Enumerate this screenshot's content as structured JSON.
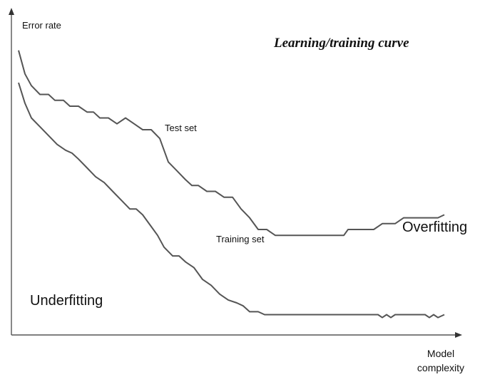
{
  "chart_data": {
    "type": "line",
    "title": "Learning/training curve",
    "ylabel": "Error rate",
    "xlabel_lines": [
      "Model",
      "complexity"
    ],
    "axis_ticks": false,
    "grid": false,
    "xlim": [
      0,
      100
    ],
    "ylim": [
      0,
      100
    ],
    "annotations": [
      "Underfitting",
      "Overfitting"
    ],
    "series": [
      {
        "name": "Test set",
        "color": "#555555",
        "x": [
          0,
          1.5,
          3,
          5,
          7,
          8.5,
          10.5,
          12,
          14,
          16,
          17.5,
          19,
          21,
          23,
          25,
          27,
          29,
          31,
          33,
          35,
          37,
          39,
          40.5,
          42,
          44,
          46,
          48,
          50,
          52,
          54,
          56,
          58,
          60,
          62,
          64,
          66,
          68,
          70,
          72,
          74,
          76,
          77,
          80,
          83,
          85,
          86,
          88,
          90,
          92,
          94,
          96,
          98,
          99.5
        ],
        "y": [
          94,
          86,
          82,
          79,
          79,
          77,
          77,
          75,
          75,
          73,
          73,
          71,
          71,
          69,
          71,
          69,
          67,
          67,
          64,
          56,
          53,
          50,
          48,
          48,
          46,
          46,
          44,
          44,
          40,
          37,
          33,
          33,
          31,
          31,
          31,
          31,
          31,
          31,
          31,
          31,
          31,
          33,
          33,
          33,
          35,
          35,
          35,
          37,
          37,
          37,
          37,
          37,
          38
        ]
      },
      {
        "name": "Training set",
        "color": "#555555",
        "x": [
          0,
          1.5,
          3,
          5,
          7,
          9,
          11,
          12.5,
          14,
          16,
          18,
          20,
          22,
          24,
          26,
          27.5,
          29,
          31,
          32.5,
          34,
          36,
          37.5,
          39,
          41,
          43,
          45,
          47,
          49,
          51,
          52.5,
          54,
          56,
          57.5,
          59,
          61,
          64,
          66,
          68,
          70,
          72,
          74,
          78,
          82,
          84,
          85,
          86,
          87,
          88,
          90,
          93,
          95,
          96,
          97,
          98,
          99.5
        ],
        "y": [
          83,
          76,
          71,
          68,
          65,
          62,
          60,
          59,
          57,
          54,
          51,
          49,
          46,
          43,
          40,
          40,
          38,
          34,
          31,
          27,
          24,
          24,
          22,
          20,
          16,
          14,
          11,
          9,
          8,
          7,
          5,
          5,
          4,
          4,
          4,
          4,
          4,
          4,
          4,
          4,
          4,
          4,
          4,
          4,
          3,
          4,
          3,
          4,
          4,
          4,
          4,
          3,
          4,
          3,
          4
        ]
      }
    ]
  }
}
